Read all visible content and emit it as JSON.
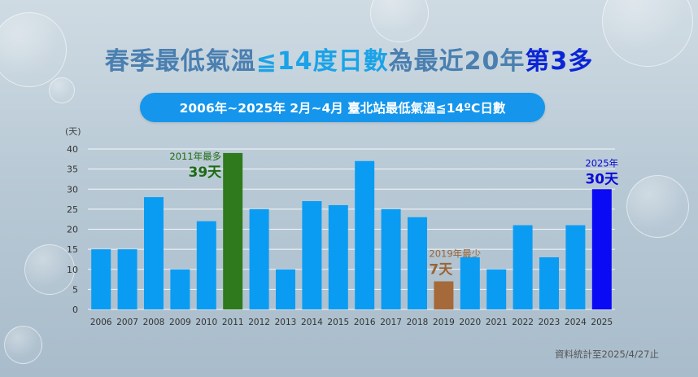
{
  "title": {
    "part1": "春季最低氣溫",
    "part2": "≦14度日數",
    "part3": "為最近20年",
    "part4": "第3多"
  },
  "subtitle": "2006年~2025年  2月~4月  臺北站最低氣溫≦14ºC日數",
  "source_note": "資料統計至2025/4/27止",
  "colors": {
    "bar_default": "#0a9cf3",
    "bar_max": "#2e7a1c",
    "bar_min": "#a5693a",
    "bar_current": "#0a0af5",
    "title_main": "#4a7fb0",
    "title_highlight": "#1aa3e8",
    "title_accent": "#0a24d6",
    "pill_bg": "#1596ec"
  },
  "chart_data": {
    "type": "bar",
    "ylabel": "(天)",
    "ylim": [
      0,
      40
    ],
    "yticks": [
      0,
      5,
      10,
      15,
      20,
      25,
      30,
      35,
      40
    ],
    "grid": true,
    "categories": [
      "2006",
      "2007",
      "2008",
      "2009",
      "2010",
      "2011",
      "2012",
      "2013",
      "2014",
      "2015",
      "2016",
      "2017",
      "2018",
      "2019",
      "2020",
      "2021",
      "2022",
      "2023",
      "2024",
      "2025"
    ],
    "values": [
      15,
      15,
      28,
      10,
      22,
      39,
      25,
      10,
      27,
      26,
      37,
      25,
      23,
      7,
      13,
      10,
      21,
      13,
      21,
      30
    ],
    "annotations": [
      {
        "category": "2011",
        "line1": "2011年最多",
        "line2": "39天",
        "color": "#1e6b12"
      },
      {
        "category": "2019",
        "line1": "2019年最少",
        "line2": "7天",
        "color": "#9a6435"
      },
      {
        "category": "2025",
        "line1": "2025年",
        "line2": "30天",
        "color": "#0a0ad8"
      }
    ]
  }
}
